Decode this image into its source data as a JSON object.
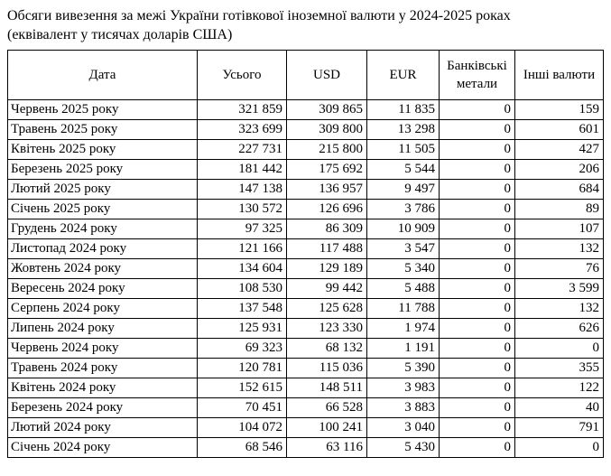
{
  "title": {
    "line1": "Обсяги вивезення за межі України готівкової іноземної валюти у 2024-2025 роках",
    "line2": "(еквівалент у тисячах доларів США)"
  },
  "table": {
    "columns": [
      "Дата",
      "Усього",
      "USD",
      "EUR",
      "Банківські метали",
      "Інші валюти"
    ],
    "rows": [
      [
        "Червень 2025 року",
        "321 859",
        "309 865",
        "11 835",
        "0",
        "159"
      ],
      [
        "Травень 2025 року",
        "323 699",
        "309 800",
        "13 298",
        "0",
        "601"
      ],
      [
        "Квітень 2025 року",
        "227 731",
        "215 800",
        "11 505",
        "0",
        "427"
      ],
      [
        "Березень 2025 року",
        "181 442",
        "175 692",
        "5 544",
        "0",
        "206"
      ],
      [
        "Лютий 2025 року",
        "147 138",
        "136 957",
        "9 497",
        "0",
        "684"
      ],
      [
        "Січень 2025 року",
        "130 572",
        "126 696",
        "3 786",
        "0",
        "89"
      ],
      [
        "Грудень 2024 року",
        "97 325",
        "86 309",
        "10 909",
        "0",
        "107"
      ],
      [
        "Листопад 2024 року",
        "121 166",
        "117 488",
        "3 547",
        "0",
        "132"
      ],
      [
        "Жовтень 2024 року",
        "134 604",
        "129 189",
        "5 340",
        "0",
        "76"
      ],
      [
        "Вересень 2024 року",
        "108 530",
        "99 442",
        "5 488",
        "0",
        "3 599"
      ],
      [
        "Серпень 2024 року",
        "137 548",
        "125 628",
        "11 788",
        "0",
        "132"
      ],
      [
        "Липень 2024 року",
        "125 931",
        "123 330",
        "1 974",
        "0",
        "626"
      ],
      [
        "Червень 2024 року",
        "69 323",
        "68 132",
        "1 191",
        "0",
        "0"
      ],
      [
        "Травень 2024 року",
        "120 781",
        "115 036",
        "5 390",
        "0",
        "355"
      ],
      [
        "Квітень 2024 року",
        "152 615",
        "148 511",
        "3 983",
        "0",
        "122"
      ],
      [
        "Березень 2024 року",
        "70 451",
        "66 528",
        "3 883",
        "0",
        "40"
      ],
      [
        "Лютий 2024 року",
        "104 072",
        "100 241",
        "3 040",
        "0",
        "791"
      ],
      [
        "Січень 2024 року",
        "68 546",
        "63 116",
        "5 430",
        "0",
        "0"
      ]
    ]
  },
  "colors": {
    "border": "#000000",
    "text": "#000000",
    "background": "#ffffff"
  }
}
